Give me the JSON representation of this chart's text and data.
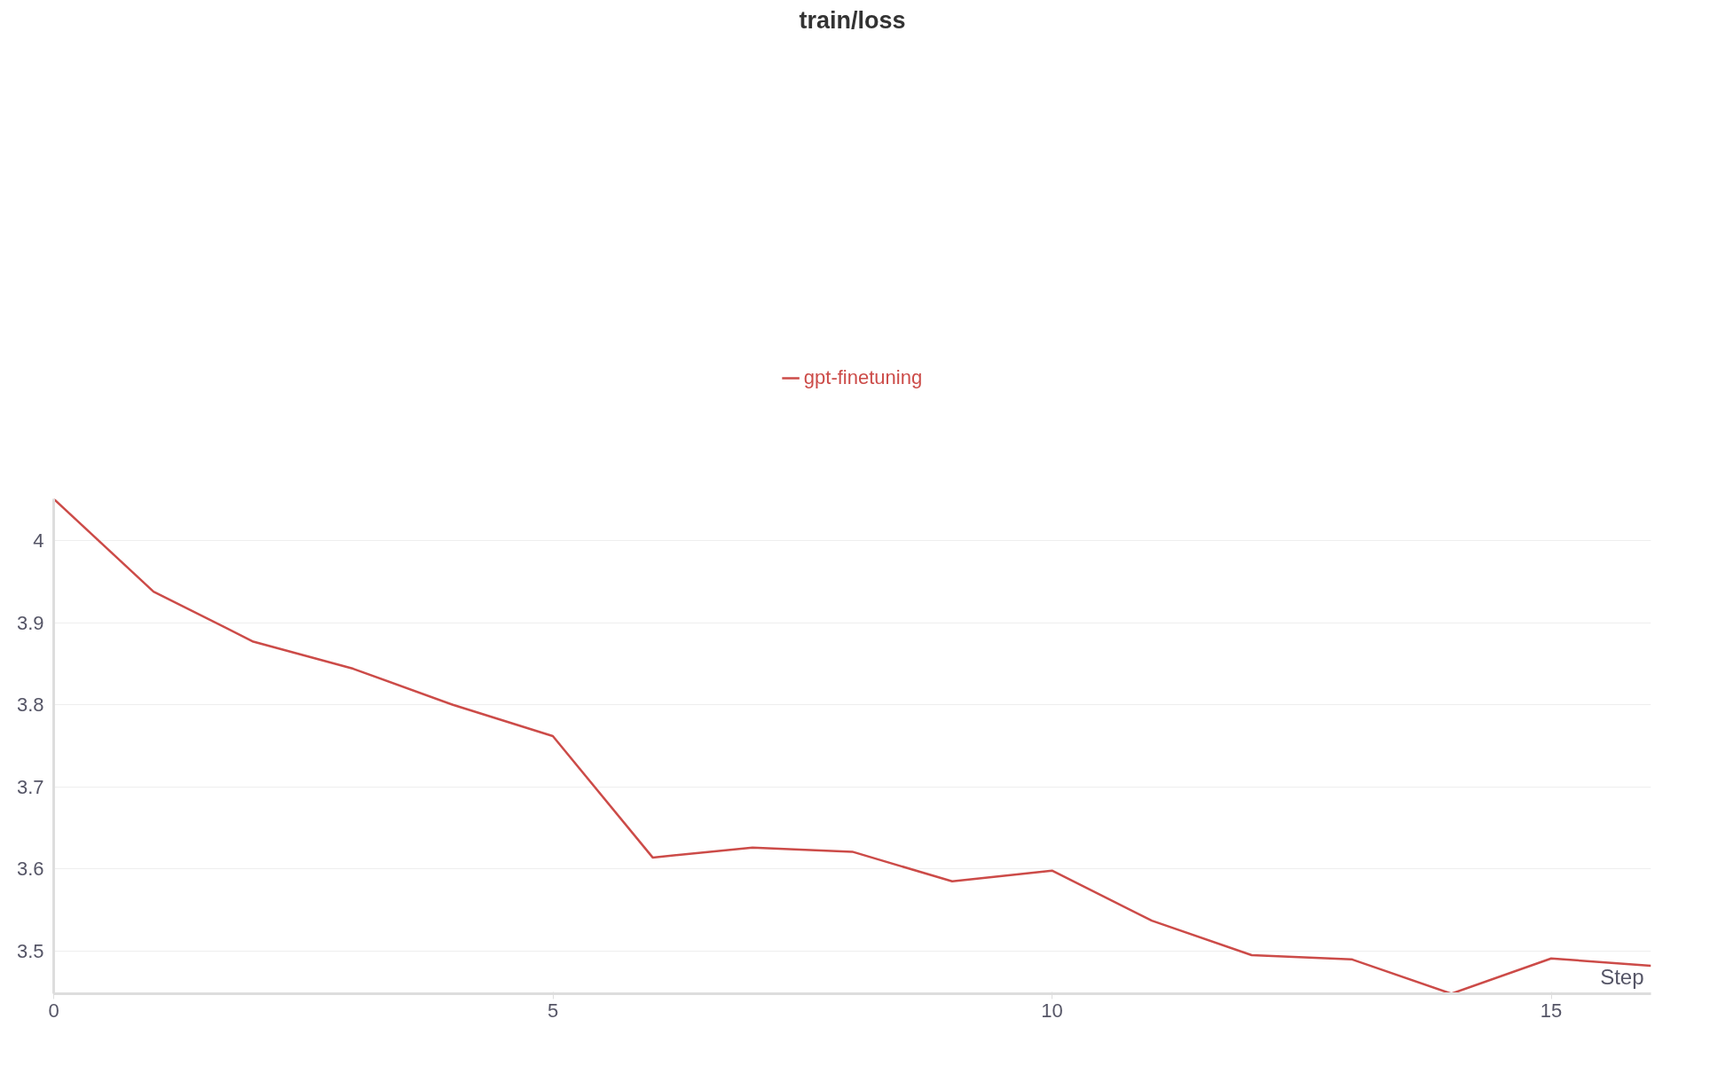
{
  "chart_data": {
    "type": "line",
    "title": "train/loss",
    "xlabel": "Step",
    "x": [
      0,
      1,
      2,
      3,
      4,
      5,
      6,
      7,
      8,
      9,
      10,
      11,
      12,
      13,
      14,
      15,
      16
    ],
    "series": [
      {
        "name": "gpt-finetuning",
        "color": "#cc4b48",
        "values": [
          4.051,
          3.938,
          3.877,
          3.844,
          3.8,
          3.762,
          3.614,
          3.626,
          3.621,
          3.585,
          3.598,
          3.537,
          3.495,
          3.49,
          3.448,
          3.491,
          3.482
        ]
      }
    ],
    "xlim": [
      0,
      16
    ],
    "ylim": [
      3.448,
      4.051
    ],
    "xticks": [
      0,
      5,
      10,
      15
    ],
    "yticks": [
      {
        "value": 3.5,
        "label": "3.5"
      },
      {
        "value": 3.6,
        "label": "3.6"
      },
      {
        "value": 3.7,
        "label": "3.7"
      },
      {
        "value": 3.8,
        "label": "3.8"
      },
      {
        "value": 3.9,
        "label": "3.9"
      },
      {
        "value": 4,
        "label": "4"
      }
    ],
    "grid": "y",
    "legend": "top",
    "line_style": "solid"
  }
}
